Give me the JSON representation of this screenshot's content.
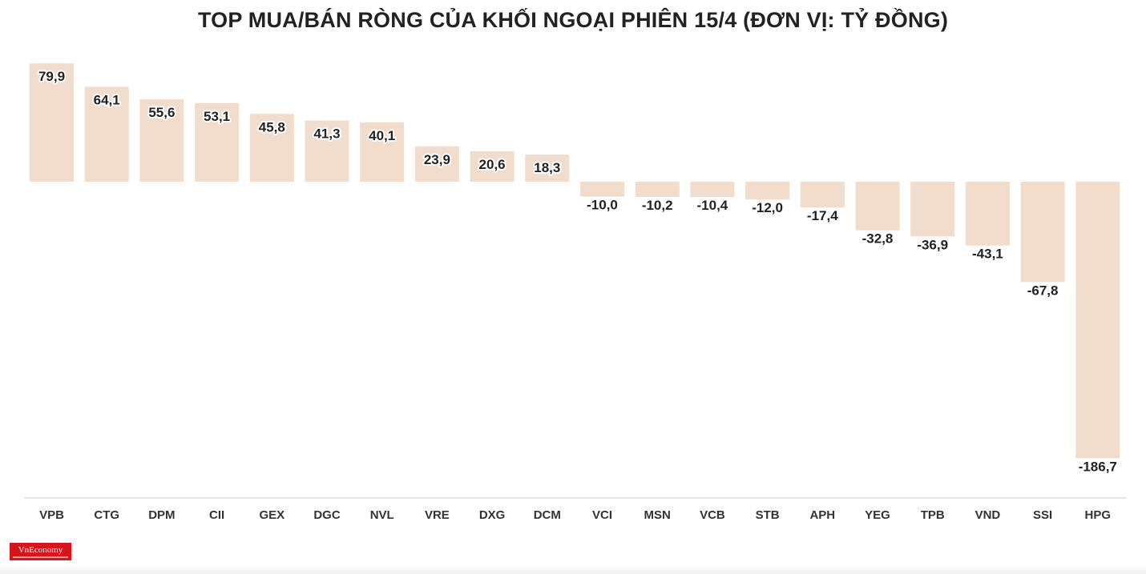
{
  "chart_data": {
    "type": "bar",
    "title": "TOP MUA/BÁN RÒNG CỦA KHỐI NGOẠI PHIÊN 15/4 (ĐƠN VỊ: TỶ ĐỒNG)",
    "categories": [
      "VPB",
      "CTG",
      "DPM",
      "CII",
      "GEX",
      "DGC",
      "NVL",
      "VRE",
      "DXG",
      "DCM",
      "VCI",
      "MSN",
      "VCB",
      "STB",
      "APH",
      "YEG",
      "TPB",
      "VND",
      "SSI",
      "HPG"
    ],
    "values": [
      79.9,
      64.1,
      55.6,
      53.1,
      45.8,
      41.3,
      40.1,
      23.9,
      20.6,
      18.3,
      -10.0,
      -10.2,
      -10.4,
      -12.0,
      -17.4,
      -32.8,
      -36.9,
      -43.1,
      -67.8,
      -186.7
    ],
    "value_labels": [
      "79,9",
      "64,1",
      "55,6",
      "53,1",
      "45,8",
      "41,3",
      "40,1",
      "23,9",
      "20,6",
      "18,3",
      "-10,0",
      "-10,2",
      "-10,4",
      "-12,0",
      "-17,4",
      "-32,8",
      "-36,9",
      "-43,1",
      "-67,8",
      "-186,7"
    ],
    "xlabel": "",
    "ylabel": "",
    "ylim": [
      -186.7,
      79.9
    ],
    "grid": false,
    "legend": "none",
    "bar_color": "#f2dccb"
  },
  "logo": {
    "text": "VnEconomy"
  }
}
